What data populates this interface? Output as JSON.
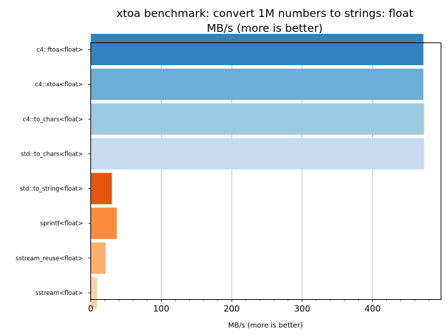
{
  "chart_data": {
    "type": "bar",
    "orientation": "horizontal",
    "title": "xtoa benchmark: convert 1M numbers to strings: float",
    "subtitle": "MB/s (more is better)",
    "xlabel": "MB/s (more is better)",
    "ylabel": "",
    "xlim": [
      0,
      497
    ],
    "x_ticks": [
      0,
      100,
      200,
      300,
      400
    ],
    "x_tick_labels": [
      "0",
      "100",
      "200",
      "300",
      "400"
    ],
    "x_minor_ticks": [
      20,
      40,
      60,
      80,
      120,
      140,
      160,
      180,
      220,
      240,
      260,
      280,
      320,
      340,
      360,
      380,
      420,
      440,
      460,
      480
    ],
    "grid": "vertical major gridlines",
    "categories": [
      "c4::ftoa<float>",
      "c4::xtoa<float>",
      "c4::to_chars<float>",
      "std::to_chars<float>",
      "std::to_string<float>",
      "sprintf<float>",
      "sstream_reuse<float>",
      "sstream<float>"
    ],
    "values": [
      472,
      472,
      473,
      473,
      30,
      37,
      21,
      9
    ],
    "colors": [
      "#3182bd",
      "#6baed6",
      "#9ecae1",
      "#c6dbef",
      "#e6550d",
      "#fd8d3c",
      "#fdae6b",
      "#fdd0a2"
    ]
  }
}
